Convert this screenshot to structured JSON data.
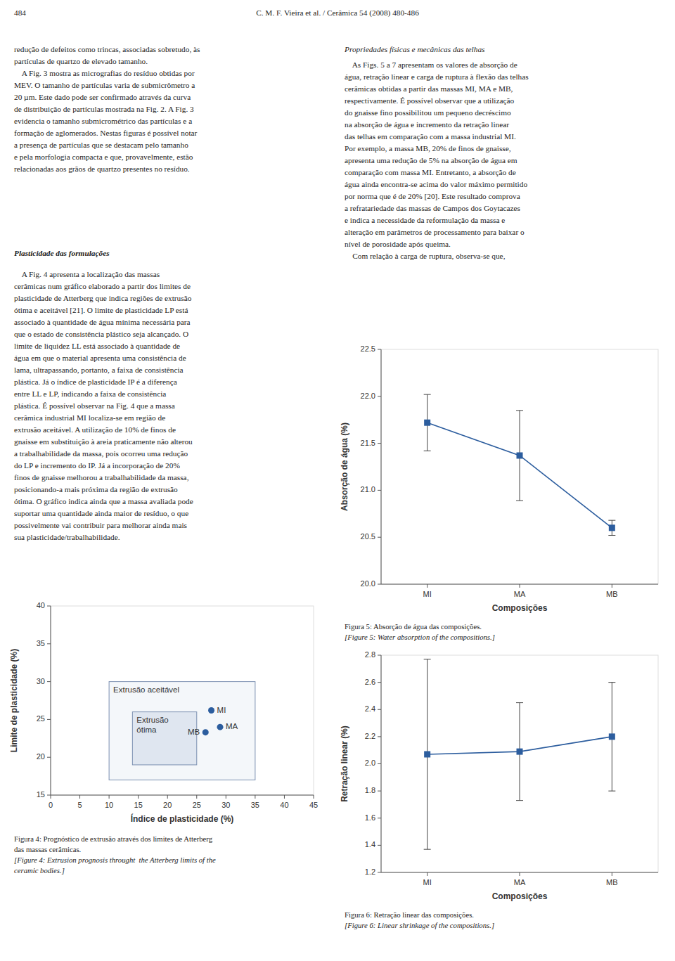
{
  "page": {
    "header_left": "484",
    "header_center": "C. M. F. Vieira et al. / Cerâmica 54 (2008) 480-486",
    "left_top_text": "redução de defeitos como trincas, associadas sobretudo, às\npartículas de quartzo de elevado tamanho.\n    A Fig. 3 mostra as micrografias do resíduo obtidas por\nMEV. O tamanho de partículas varia de submicrômetro a\n20 µm. Este dado pode ser confirmado através da curva\nde distribuição de partículas mostrada na Fig. 2. A Fig. 3\nevidencia o tamanho submicrométrico das partículas e a\nformação de aglomerados. Nestas figuras é possível notar\na presença de partículas que se destacam pelo tamanho\ne pela morfologia compacta e que, provavelmente, estão\nrelacionadas aos grãos de quartzo presentes no resíduo.",
    "plast_heading": "Plasticidade das formulações",
    "plast_body": "    A Fig. 4 apresenta a localização das massas\ncerâmicas num gráfico elaborado a partir dos limites de\nplasticidade de Atterberg que indica regiões de extrusão\nótima e aceitável [21]. O limite de plasticidade LP está\nassociado à quantidade de água mínima necessária para\nque o estado de consistência plástico seja alcançado. O\nlimite de liquidez LL está associado à quantidade de\nágua em que o material apresenta uma consistência de\nlama, ultrapassando, portanto, a faixa de consistência\nplástica. Já o índice de plasticidade IP é a diferença\nentre LL e LP, indicando a faixa de consistência\nplástica. É possível observar na Fig. 4 que a massa\ncerâmica industrial MI localiza-se em região de\nextrusão aceitável. A utilização de 10% de finos de\ngnaisse em substituição à areia praticamente não alterou\na trabalhabilidade da massa, pois ocorreu uma redução\ndo LP e incremento do IP. Já a incorporação de 20%\nfinos de gnaisse melhorou a trabalhabilidade da massa,\nposicionando-a mais próxima da região de extrusão\nótima. O gráfico indica ainda que a massa avaliada pode\nsuportar uma quantidade ainda maior de resíduo, o que\npossivelmente vai contribuir para melhorar ainda mais\nsua plasticidade/trabalhabilidade.",
    "right_heading": "Propriedades físicas e mecânicas das telhas",
    "right_body": "    As Figs. 5 a 7 apresentam os valores de absorção de\nágua, retração linear e carga de ruptura à flexão das telhas\ncerâmicas obtidas a partir das massas MI, MA e MB,\nrespectivamente. É possível observar que a utilização\ndo gnaisse fino possibilitou um pequeno decréscimo\nna absorção de água e incremento da retração linear\ndas telhas em comparação com a massa industrial MI.\nPor exemplo, a massa MB, 20% de finos de gnaisse,\napresenta uma redução de 5% na absorção de água em\ncomparação com massa MI. Entretanto, a absorção de\nágua ainda encontra-se acima do valor máximo permitido\npor norma que é de 20% [20]. Este resultado comprova\na refratariedade das massas de Campos dos Goytacazes\ne indica a necessidade da reformulação da massa e\nalteração em parâmetros de processamento para baixar o\nnível de porosidade após queima.\n    Com relação à carga de ruptura, observa-se que,"
  },
  "chart_data": [
    {
      "type": "scatter",
      "xlabel": "Índice de plasticidade (%)",
      "ylabel": "Limite de plasticidade (%)",
      "xlim": [
        0,
        45
      ],
      "ylim": [
        15,
        40
      ],
      "xticks": [
        0,
        5,
        10,
        15,
        20,
        25,
        30,
        35,
        40,
        45
      ],
      "yticks": [
        15,
        20,
        25,
        30,
        35,
        40
      ],
      "grid": false,
      "marker": "circle",
      "x": [
        27.5,
        29.0,
        26.5
      ],
      "values": [
        26.2,
        24.0,
        23.3
      ],
      "point_labels": [
        "MI",
        "MA",
        "MB"
      ],
      "regions": [
        {
          "label": "Extrusão aceitável",
          "x": 10,
          "y": 17,
          "width": 25,
          "height": 13
        },
        {
          "label": "Extrusão\nótima",
          "x": 14,
          "y": 19,
          "width": 11,
          "height": 7
        }
      ],
      "caption": [
        "Figura 4: Prognóstico de extrusão através dos limites de Atterberg",
        "das massas cerâmicas."
      ],
      "caption_en": [
        "[Figure 4: Extrusion prognosis throught  the Atterberg limits of the",
        "ceramic bodies.]"
      ]
    },
    {
      "type": "line",
      "xlabel": "Composições",
      "ylabel": "Absorção de água (%)",
      "categories": [
        "MI",
        "MA",
        "MB"
      ],
      "values": [
        21.72,
        21.37,
        20.6
      ],
      "errors": [
        0.3,
        0.48,
        0.08
      ],
      "ylim": [
        20.0,
        22.5
      ],
      "yticks": [
        {
          "value": 20.0,
          "label": "20.0"
        },
        20.5,
        {
          "value": 21.0,
          "label": "21.0"
        },
        21.5,
        {
          "value": 22.0,
          "label": "22.0"
        },
        22.5
      ],
      "grid": false,
      "marker": "square",
      "line_style": "solid",
      "caption": [
        "Figura 5: Absorção de água das composições."
      ],
      "caption_en": [
        "[Figure 5: Water absorption of the compositions.]"
      ]
    },
    {
      "type": "line",
      "xlabel": "Composições",
      "ylabel": "Retração linear (%)",
      "categories": [
        "MI",
        "MA",
        "MB"
      ],
      "values": [
        2.07,
        2.09,
        2.2
      ],
      "errors": [
        0.7,
        0.36,
        0.4
      ],
      "ylim": [
        1.2,
        2.8
      ],
      "yticks": [
        1.2,
        1.4,
        1.6,
        1.8,
        {
          "value": 2.0,
          "label": "2.0"
        },
        2.2,
        2.4,
        2.6,
        2.8
      ],
      "grid": false,
      "marker": "square",
      "line_style": "solid",
      "caption": [
        "Figura 6: Retração linear das composições."
      ],
      "caption_en": [
        "[Figure 6: Linear shrinkage of the compositions.]"
      ]
    }
  ]
}
